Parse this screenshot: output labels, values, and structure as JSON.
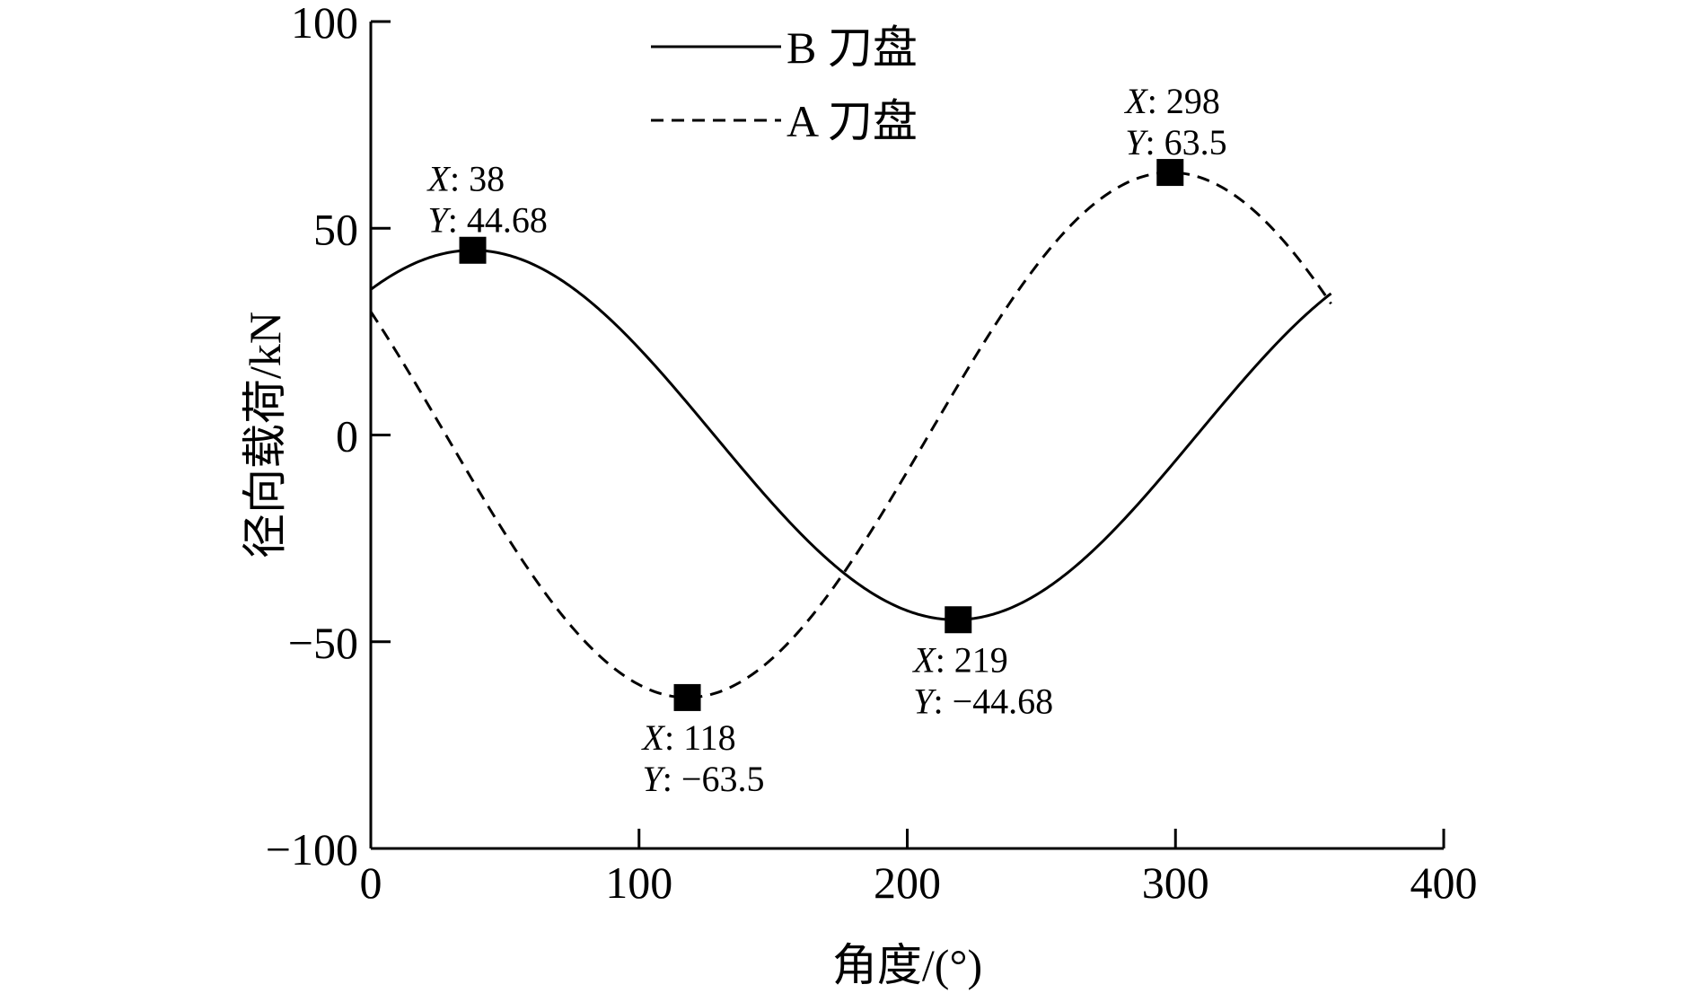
{
  "chart_data": {
    "type": "line",
    "title": "",
    "xlabel": "角度/(°)",
    "ylabel": "径向载荷/kN",
    "xlim": [
      0,
      400
    ],
    "ylim": [
      -100,
      100
    ],
    "x_ticks": [
      0,
      100,
      200,
      300,
      400
    ],
    "y_ticks": [
      -100,
      -50,
      0,
      50,
      100
    ],
    "x_tick_labels": [
      "0",
      "100",
      "200",
      "300",
      "400"
    ],
    "y_tick_labels": [
      "−100",
      "−50",
      "0",
      "50",
      "100"
    ],
    "grid": false,
    "legend_position": "top-center",
    "series": [
      {
        "name": "B 刀盘",
        "style": "solid",
        "color": "#000000",
        "amplitude": 44.68,
        "peak_x": 38,
        "x_range": [
          0,
          358
        ]
      },
      {
        "name": "A 刀盘",
        "style": "dashed",
        "color": "#000000",
        "amplitude": 63.5,
        "peak_x": 298,
        "x_range": [
          0,
          358
        ]
      }
    ],
    "annotations": [
      {
        "series": 0,
        "x": 38,
        "y": 44.68,
        "x_label": "X",
        "x_text": ": 38",
        "y_label": "Y",
        "y_text": ": 44.68",
        "placement": "above"
      },
      {
        "series": 1,
        "x": 118,
        "y": -63.5,
        "x_label": "X",
        "x_text": ": 118",
        "y_label": "Y",
        "y_text": ": −63.5",
        "placement": "below"
      },
      {
        "series": 0,
        "x": 219,
        "y": -44.68,
        "x_label": "X",
        "x_text": ": 219",
        "y_label": "Y",
        "y_text": ": −44.68",
        "placement": "below"
      },
      {
        "series": 1,
        "x": 298,
        "y": 63.5,
        "x_label": "X",
        "x_text": ": 298",
        "y_label": "Y",
        "y_text": ": 63.5",
        "placement": "above"
      }
    ]
  }
}
